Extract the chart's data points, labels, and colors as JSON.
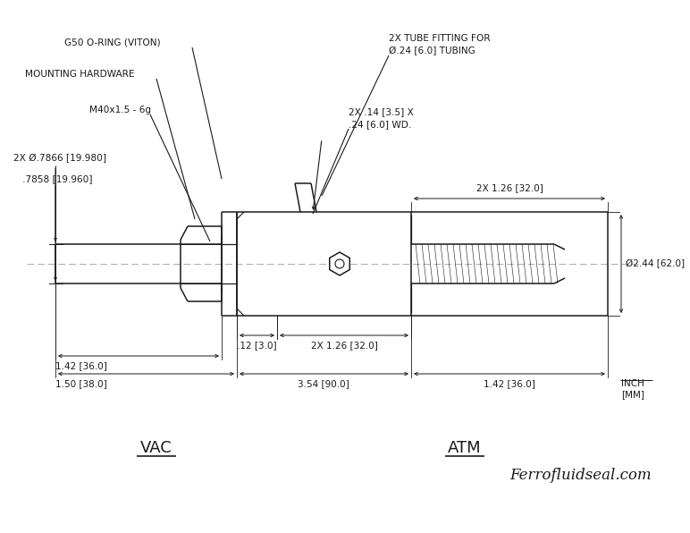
{
  "bg_color": "#ffffff",
  "line_color": "#1a1a1a",
  "centerline_color": "#aaaaaa",
  "annotations": {
    "g50_oring": "G50 O-RING (VITON)",
    "mounting_hardware": "MOUNTING HARDWARE",
    "thread": "M40x1.5 - 6g",
    "shaft_dia_top": "2X Ø.7866 [19.980]",
    "shaft_dia_bot": "   .7858 [19.960]",
    "tube_fitting_line1": "2X TUBE FITTING FOR",
    "tube_fitting_line2": "Ø.24 [6.0] TUBING",
    "groove_line1": "2X .14 [3.5] X",
    "groove_line2": ".24 [6.0] WD.",
    "dim_1_26_top": "2X 1.26 [32.0]",
    "dia_2_44": "Ø2.44 [62.0]",
    "dim_012": ".12 [3.0]",
    "dim_2x126_bot": "2X 1.26 [32.0]",
    "dim_142_left": "1.42 [36.0]",
    "dim_150": "1.50 [38.0]",
    "dim_354": "3.54 [90.0]",
    "dim_142_right": "1.42 [36.0]",
    "units_top": "INCH",
    "units_bot": "[MM]",
    "vac": "VAC",
    "atm": "ATM",
    "website": "Ferrofluidseal.com"
  },
  "figsize": [
    7.72,
    5.96
  ],
  "dpi": 100
}
